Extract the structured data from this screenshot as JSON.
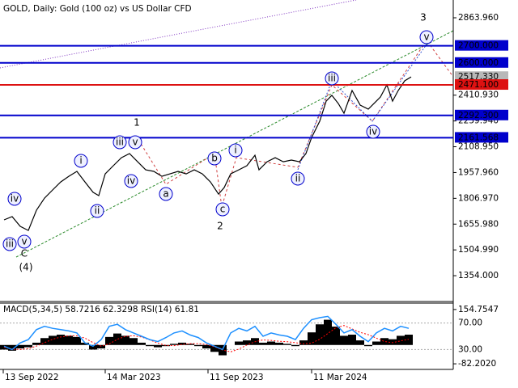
{
  "chart_data": [
    {
      "type": "line",
      "title": "GOLD, Daily:  Gold (100 oz) vs US Dollar CFD",
      "color": "#000000",
      "x": [
        1,
        11,
        21,
        31,
        41,
        51,
        61,
        71,
        81,
        91,
        101,
        111,
        118,
        126,
        136,
        146,
        156,
        166,
        176,
        186,
        196,
        206,
        216,
        226,
        236,
        246,
        256,
        266,
        273,
        281,
        291,
        301,
        311,
        316,
        326,
        336,
        346,
        356,
        366,
        374,
        381,
        391,
        399,
        406,
        414,
        421,
        431,
        441,
        451,
        458,
        466,
        474,
        481,
        488,
        496,
        504
      ],
      "values": [
        1681,
        1700,
        1643,
        1619,
        1737,
        1808,
        1856,
        1903,
        1936,
        1965,
        1903,
        1842,
        1823,
        1950,
        1998,
        2045,
        2069,
        2021,
        1974,
        1965,
        1936,
        1950,
        1965,
        1950,
        1974,
        1950,
        1903,
        1832,
        1870,
        1950,
        1974,
        1998,
        2059,
        1974,
        2021,
        2045,
        2021,
        2031,
        2021,
        2069,
        2163,
        2258,
        2376,
        2410,
        2362,
        2305,
        2438,
        2353,
        2329,
        2362,
        2400,
        2471,
        2376,
        2438,
        2495,
        2518
      ],
      "xlim": [
        -4,
        556
      ],
      "xticks": [
        {
          "value": 0,
          "label": "13 Sep 2022"
        },
        {
          "value": 126,
          "label": "14 Mar 2023"
        },
        {
          "value": 253,
          "label": "11 Sep 2023"
        },
        {
          "value": 381,
          "label": "11 Mar 2024"
        }
      ],
      "ylim": [
        1207.6,
        2968.1
      ],
      "yticks": [
        {
          "value": 2863.96,
          "label": "2863.960"
        },
        {
          "value": 2410.93,
          "label": "2410.930"
        },
        {
          "value": 2259.94,
          "label": "2259.940"
        },
        {
          "value": 2108.95,
          "label": "2108.950"
        },
        {
          "value": 1957.96,
          "label": "1957.960"
        },
        {
          "value": 1806.97,
          "label": "1806.970"
        },
        {
          "value": 1655.98,
          "label": "1655.980"
        },
        {
          "value": 1504.99,
          "label": "1504.990"
        },
        {
          "value": 1354,
          "label": "1354.000"
        }
      ],
      "last_price": {
        "value": 2517.33,
        "label": "2517.330"
      },
      "levels": [
        {
          "value": 2700,
          "label": "2700.000",
          "color": "#0000cc"
        },
        {
          "value": 2600,
          "label": "2600.000",
          "color": "#0000cc"
        },
        {
          "value": 2471.1,
          "label": "2471.100",
          "color": "#dd1111"
        },
        {
          "value": 2292.3,
          "label": "2292.300",
          "color": "#0000cc"
        },
        {
          "value": 2161.568,
          "label": "2161.568",
          "color": "#0000cc"
        }
      ],
      "wave_labels": [
        "iv",
        "iii",
        "v",
        "C",
        "(4)",
        "i",
        "ii",
        "iii",
        "v",
        "1",
        "iv",
        "a",
        "b",
        "i",
        "c",
        "2",
        "ii",
        "iii",
        "iv",
        "v",
        "3"
      ]
    },
    {
      "type": "macd",
      "title": "MACD(5,34,5) 58.7216 62.3298 RSI(14) 61.81",
      "x": [
        1,
        11,
        21,
        31,
        41,
        51,
        61,
        71,
        81,
        91,
        101,
        111,
        121,
        131,
        141,
        151,
        161,
        171,
        181,
        191,
        201,
        211,
        221,
        231,
        241,
        251,
        261,
        271,
        281,
        291,
        301,
        311,
        321,
        331,
        341,
        351,
        361,
        371,
        381,
        391,
        401,
        411,
        421,
        431,
        441,
        451,
        461,
        471,
        481,
        491,
        501
      ],
      "series": [
        {
          "type": "bar",
          "color": "#000000",
          "values": [
            -20,
            -25,
            -15,
            -10,
            10,
            30,
            40,
            45,
            40,
            35,
            10,
            -20,
            -15,
            35,
            50,
            40,
            30,
            10,
            -5,
            -10,
            -5,
            5,
            10,
            5,
            -5,
            -15,
            -30,
            -45,
            0,
            15,
            20,
            30,
            10,
            15,
            10,
            5,
            -5,
            20,
            55,
            90,
            110,
            80,
            40,
            45,
            20,
            -5,
            15,
            30,
            25,
            40,
            45
          ]
        },
        {
          "type": "line",
          "color": "#ff0000",
          "values": [
            -10,
            -18,
            -20,
            -16,
            -5,
            10,
            25,
            35,
            40,
            40,
            30,
            10,
            -5,
            5,
            25,
            38,
            40,
            35,
            22,
            8,
            -2,
            -3,
            2,
            6,
            6,
            2,
            -8,
            -22,
            -30,
            -18,
            0,
            14,
            22,
            20,
            16,
            14,
            10,
            5,
            8,
            25,
            50,
            75,
            85,
            70,
            55,
            45,
            30,
            15,
            10,
            18,
            25
          ]
        },
        {
          "type": "line",
          "axis": "y2",
          "color": "#1e90ff",
          "values": [
            35,
            30,
            40,
            45,
            60,
            65,
            62,
            60,
            58,
            55,
            40,
            35,
            45,
            65,
            68,
            60,
            55,
            50,
            45,
            42,
            48,
            55,
            58,
            52,
            48,
            40,
            35,
            30,
            55,
            62,
            58,
            65,
            50,
            55,
            52,
            50,
            45,
            62,
            75,
            78,
            80,
            68,
            55,
            60,
            50,
            42,
            55,
            62,
            58,
            65,
            62
          ]
        }
      ],
      "ylim": [
        -106.6,
        182.6
      ],
      "yticks": [
        154.7547,
        {
          "value": -82.202,
          "label": "-82.2020"
        }
      ],
      "y2lim": [
        0,
        100
      ],
      "y2ticks": [
        {
          "value": 70,
          "label": "70.00"
        },
        {
          "value": 30,
          "label": "30.00"
        }
      ]
    }
  ]
}
